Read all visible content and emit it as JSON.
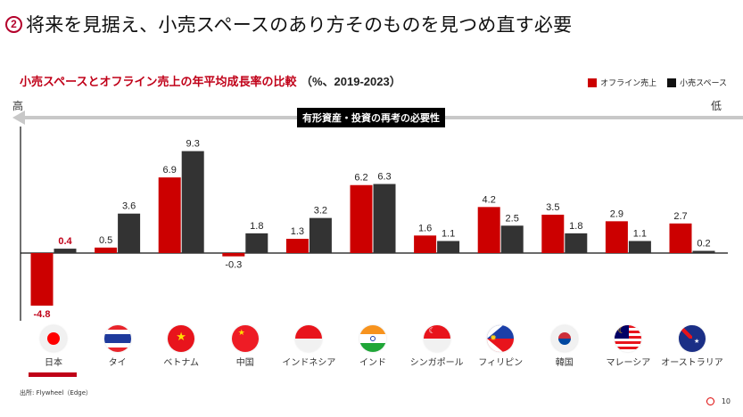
{
  "header": {
    "number": "2",
    "title": "将来を見据え、小売スペースのあり方そのものを見つめ直す必要"
  },
  "chart_data": {
    "type": "bar",
    "title": "小売スペースとオフライン売上の年平均成長率の比較",
    "title_unit": "（%、2019-2023）",
    "xlabel": "",
    "ylabel": "",
    "ylim": [
      -5.5,
      11.5
    ],
    "grid": false,
    "legend_position": "top-right",
    "categories": [
      "日本",
      "タイ",
      "ベトナム",
      "中国",
      "インドネシア",
      "インド",
      "シンガポール",
      "フィリピン",
      "韓国",
      "マレーシア",
      "オーストラリア"
    ],
    "series": [
      {
        "name": "オフライン売上",
        "color": "#cc0000",
        "values": [
          -4.8,
          0.5,
          6.9,
          -0.3,
          1.3,
          6.2,
          1.6,
          4.2,
          3.5,
          2.9,
          2.7
        ]
      },
      {
        "name": "小売スペース",
        "color": "#333333",
        "values": [
          0.4,
          3.6,
          9.3,
          1.8,
          3.2,
          6.3,
          1.1,
          2.5,
          1.8,
          1.1,
          0.2
        ]
      }
    ],
    "highlight_category": "日本",
    "annotation": {
      "label": "有形資産・投資の再考の必要性",
      "left_end": "高",
      "right_end": "低"
    }
  },
  "legend": [
    {
      "label": "オフライン売上",
      "color": "#cc0000"
    },
    {
      "label": "小売スペース",
      "color": "#111111"
    }
  ],
  "flags": [
    "japan-flag",
    "thailand-flag",
    "vietnam-flag",
    "china-flag",
    "indonesia-flag",
    "india-flag",
    "singapore-flag",
    "philippines-flag",
    "korea-flag",
    "malaysia-flag",
    "australia-flag"
  ],
  "footer": {
    "source": "出所: Flywheel（Edge）",
    "page": "10"
  }
}
